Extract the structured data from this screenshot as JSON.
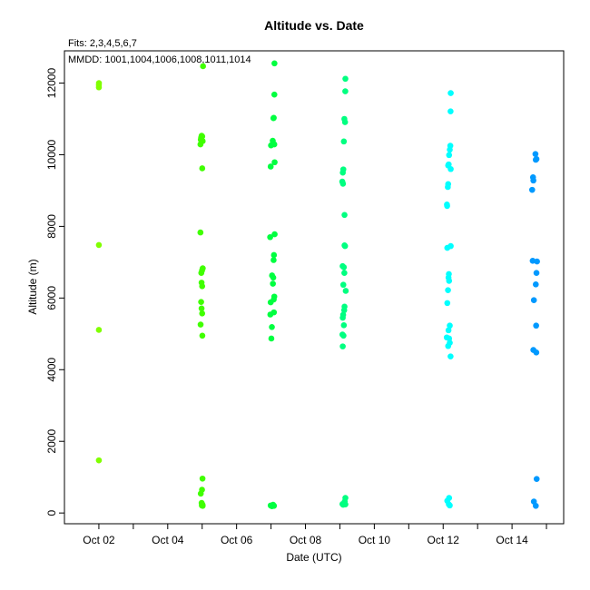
{
  "chart_data": {
    "type": "scatter",
    "title": "Altitude  vs. Date",
    "subtitle_fits": "Fits: 2,3,4,5,6,7",
    "subtitle_mmdd": "MMDD: 1001,1004,1006,1008,1011,1014",
    "xlabel": "Date (UTC)",
    "ylabel": "Altitude (m)",
    "xlim": [
      "2023-10-01T00:00",
      "2023-10-15T12:00"
    ],
    "ylim": [
      -300,
      12900
    ],
    "grid": false,
    "legend": "none",
    "x_ticks": [
      {
        "date": "2023-10-02",
        "label": "Oct 02"
      },
      {
        "date": "2023-10-03",
        "label": ""
      },
      {
        "date": "2023-10-04",
        "label": "Oct 04"
      },
      {
        "date": "2023-10-05",
        "label": ""
      },
      {
        "date": "2023-10-06",
        "label": "Oct 06"
      },
      {
        "date": "2023-10-07",
        "label": ""
      },
      {
        "date": "2023-10-08",
        "label": "Oct 08"
      },
      {
        "date": "2023-10-09",
        "label": ""
      },
      {
        "date": "2023-10-10",
        "label": "Oct 10"
      },
      {
        "date": "2023-10-11",
        "label": ""
      },
      {
        "date": "2023-10-12",
        "label": "Oct 12"
      },
      {
        "date": "2023-10-13",
        "label": ""
      },
      {
        "date": "2023-10-14",
        "label": "Oct 14"
      },
      {
        "date": "2023-10-15",
        "label": ""
      }
    ],
    "y_ticks": [
      0,
      2000,
      4000,
      6000,
      8000,
      10000,
      12000
    ],
    "series": [
      {
        "color": "#80ff00",
        "points": [
          [
            "2023-10-02T00:00",
            11950
          ],
          [
            "2023-10-02T00:00",
            11880
          ],
          [
            "2023-10-02T00:03",
            12000
          ],
          [
            "2023-10-02T00:00",
            7480
          ],
          [
            "2023-10-02T00:00",
            5110
          ],
          [
            "2023-10-02T00:00",
            1470
          ]
        ]
      },
      {
        "color": "#40ff00",
        "points": [
          [
            "2023-10-05T00:36",
            12470
          ],
          [
            "2023-10-04T23:02",
            10420
          ],
          [
            "2023-10-04T23:17",
            10480
          ],
          [
            "2023-10-04T23:38",
            10530
          ],
          [
            "2023-10-05T00:03",
            10510
          ],
          [
            "2023-10-05T00:21",
            10380
          ],
          [
            "2023-10-04T22:48",
            10290
          ],
          [
            "2023-10-05T00:03",
            9620
          ],
          [
            "2023-10-04T22:48",
            7830
          ],
          [
            "2023-10-05T00:24",
            6830
          ],
          [
            "2023-10-04T23:53",
            6770
          ],
          [
            "2023-10-04T23:24",
            6700
          ],
          [
            "2023-10-04T23:35",
            6430
          ],
          [
            "2023-10-05T00:00",
            6330
          ],
          [
            "2023-10-04T23:17",
            5890
          ],
          [
            "2023-10-04T23:35",
            5710
          ],
          [
            "2023-10-05T00:00",
            5570
          ],
          [
            "2023-10-04T22:55",
            5260
          ],
          [
            "2023-10-05T00:07",
            4950
          ],
          [
            "2023-10-05T00:14",
            960
          ],
          [
            "2023-10-04T23:53",
            650
          ],
          [
            "2023-10-04T23:02",
            540
          ],
          [
            "2023-10-04T23:38",
            280
          ],
          [
            "2023-10-05T00:14",
            230
          ],
          [
            "2023-10-04T23:46",
            210
          ],
          [
            "2023-10-05T00:21",
            200
          ]
        ]
      },
      {
        "color": "#00ff40",
        "points": [
          [
            "2023-10-07T02:24",
            12550
          ],
          [
            "2023-10-07T01:55",
            11030
          ],
          [
            "2023-10-07T01:41",
            11020
          ],
          [
            "2023-10-07T02:20",
            11680
          ],
          [
            "2023-10-07T01:12",
            10390
          ],
          [
            "2023-10-07T02:17",
            10290
          ],
          [
            "2023-10-07T00:00",
            10260
          ],
          [
            "2023-10-07T02:31",
            9790
          ],
          [
            "2023-10-06T23:46",
            9670
          ],
          [
            "2023-10-07T02:31",
            7780
          ],
          [
            "2023-10-06T23:24",
            7700
          ],
          [
            "2023-10-07T02:02",
            7200
          ],
          [
            "2023-10-07T01:48",
            7060
          ],
          [
            "2023-10-07T00:43",
            6630
          ],
          [
            "2023-10-07T01:34",
            6570
          ],
          [
            "2023-10-07T01:19",
            6400
          ],
          [
            "2023-10-07T02:17",
            6040
          ],
          [
            "2023-10-07T01:55",
            5960
          ],
          [
            "2023-10-06T23:46",
            5880
          ],
          [
            "2023-10-07T02:00",
            5600
          ],
          [
            "2023-10-06T23:31",
            5540
          ],
          [
            "2023-10-07T00:36",
            5190
          ],
          [
            "2023-10-07T00:14",
            4870
          ],
          [
            "2023-10-06T23:46",
            210
          ],
          [
            "2023-10-07T00:36",
            190
          ],
          [
            "2023-10-07T01:26",
            230
          ],
          [
            "2023-10-07T02:02",
            200
          ]
        ]
      },
      {
        "color": "#00ff80",
        "points": [
          [
            "2023-10-09T03:50",
            12120
          ],
          [
            "2023-10-09T03:46",
            11770
          ],
          [
            "2023-10-09T03:07",
            11000
          ],
          [
            "2023-10-09T03:36",
            10910
          ],
          [
            "2023-10-09T02:46",
            10370
          ],
          [
            "2023-10-09T02:24",
            9590
          ],
          [
            "2023-10-09T02:02",
            9500
          ],
          [
            "2023-10-09T01:40",
            9250
          ],
          [
            "2023-10-09T02:10",
            9190
          ],
          [
            "2023-10-09T03:14",
            8320
          ],
          [
            "2023-10-09T03:14",
            7470
          ],
          [
            "2023-10-09T03:36",
            7450
          ],
          [
            "2023-10-09T01:55",
            6890
          ],
          [
            "2023-10-09T02:46",
            6860
          ],
          [
            "2023-10-09T03:07",
            6700
          ],
          [
            "2023-10-09T02:24",
            6370
          ],
          [
            "2023-10-09T04:05",
            6200
          ],
          [
            "2023-10-09T03:14",
            5760
          ],
          [
            "2023-10-09T03:00",
            5660
          ],
          [
            "2023-10-09T02:17",
            5530
          ],
          [
            "2023-10-09T02:00",
            5450
          ],
          [
            "2023-10-09T02:46",
            5240
          ],
          [
            "2023-10-09T01:48",
            4980
          ],
          [
            "2023-10-09T02:31",
            4950
          ],
          [
            "2023-10-09T02:00",
            4650
          ],
          [
            "2023-10-09T03:50",
            420
          ],
          [
            "2023-10-09T03:22",
            320
          ],
          [
            "2023-10-09T01:48",
            250
          ],
          [
            "2023-10-09T02:38",
            250
          ],
          [
            "2023-10-09T03:50",
            240
          ],
          [
            "2023-10-09T02:17",
            230
          ]
        ]
      },
      {
        "color": "#00ffff",
        "points": [
          [
            "2023-10-12T05:16",
            11720
          ],
          [
            "2023-10-12T05:09",
            11210
          ],
          [
            "2023-10-12T04:59",
            10250
          ],
          [
            "2023-10-12T04:37",
            10140
          ],
          [
            "2023-10-12T04:08",
            9990
          ],
          [
            "2023-10-12T03:50",
            9730
          ],
          [
            "2023-10-12T03:29",
            9700
          ],
          [
            "2023-10-12T05:16",
            9600
          ],
          [
            "2023-10-12T03:29",
            9180
          ],
          [
            "2023-10-12T03:14",
            9100
          ],
          [
            "2023-10-12T02:38",
            8610
          ],
          [
            "2023-10-12T02:46",
            8570
          ],
          [
            "2023-10-12T05:16",
            7450
          ],
          [
            "2023-10-12T02:53",
            7400
          ],
          [
            "2023-10-12T03:58",
            6670
          ],
          [
            "2023-10-12T03:43",
            6570
          ],
          [
            "2023-10-12T04:08",
            6480
          ],
          [
            "2023-10-12T03:22",
            6220
          ],
          [
            "2023-10-12T02:53",
            5860
          ],
          [
            "2023-10-12T04:37",
            5230
          ],
          [
            "2023-10-12T03:43",
            5100
          ],
          [
            "2023-10-12T02:31",
            4900
          ],
          [
            "2023-10-12T04:08",
            4870
          ],
          [
            "2023-10-12T04:37",
            4750
          ],
          [
            "2023-10-12T03:29",
            4660
          ],
          [
            "2023-10-12T05:09",
            4370
          ],
          [
            "2023-10-12T04:08",
            420
          ],
          [
            "2023-10-12T02:53",
            340
          ],
          [
            "2023-10-12T03:58",
            240
          ],
          [
            "2023-10-12T04:37",
            210
          ]
        ]
      },
      {
        "color": "#0099ff",
        "points": [
          [
            "2023-10-14T16:19",
            10020
          ],
          [
            "2023-10-14T17:02",
            9880
          ],
          [
            "2023-10-14T16:34",
            9860
          ],
          [
            "2023-10-14T14:38",
            9370
          ],
          [
            "2023-10-14T14:53",
            9280
          ],
          [
            "2023-10-14T14:02",
            9020
          ],
          [
            "2023-10-14T14:24",
            7040
          ],
          [
            "2023-10-14T17:24",
            7020
          ],
          [
            "2023-10-14T17:02",
            6700
          ],
          [
            "2023-10-14T16:34",
            6380
          ],
          [
            "2023-10-14T15:14",
            5940
          ],
          [
            "2023-10-14T16:48",
            5230
          ],
          [
            "2023-10-14T14:53",
            4550
          ],
          [
            "2023-10-14T16:55",
            4480
          ],
          [
            "2023-10-14T17:10",
            950
          ],
          [
            "2023-10-14T15:14",
            320
          ],
          [
            "2023-10-14T16:34",
            200
          ]
        ]
      }
    ]
  }
}
